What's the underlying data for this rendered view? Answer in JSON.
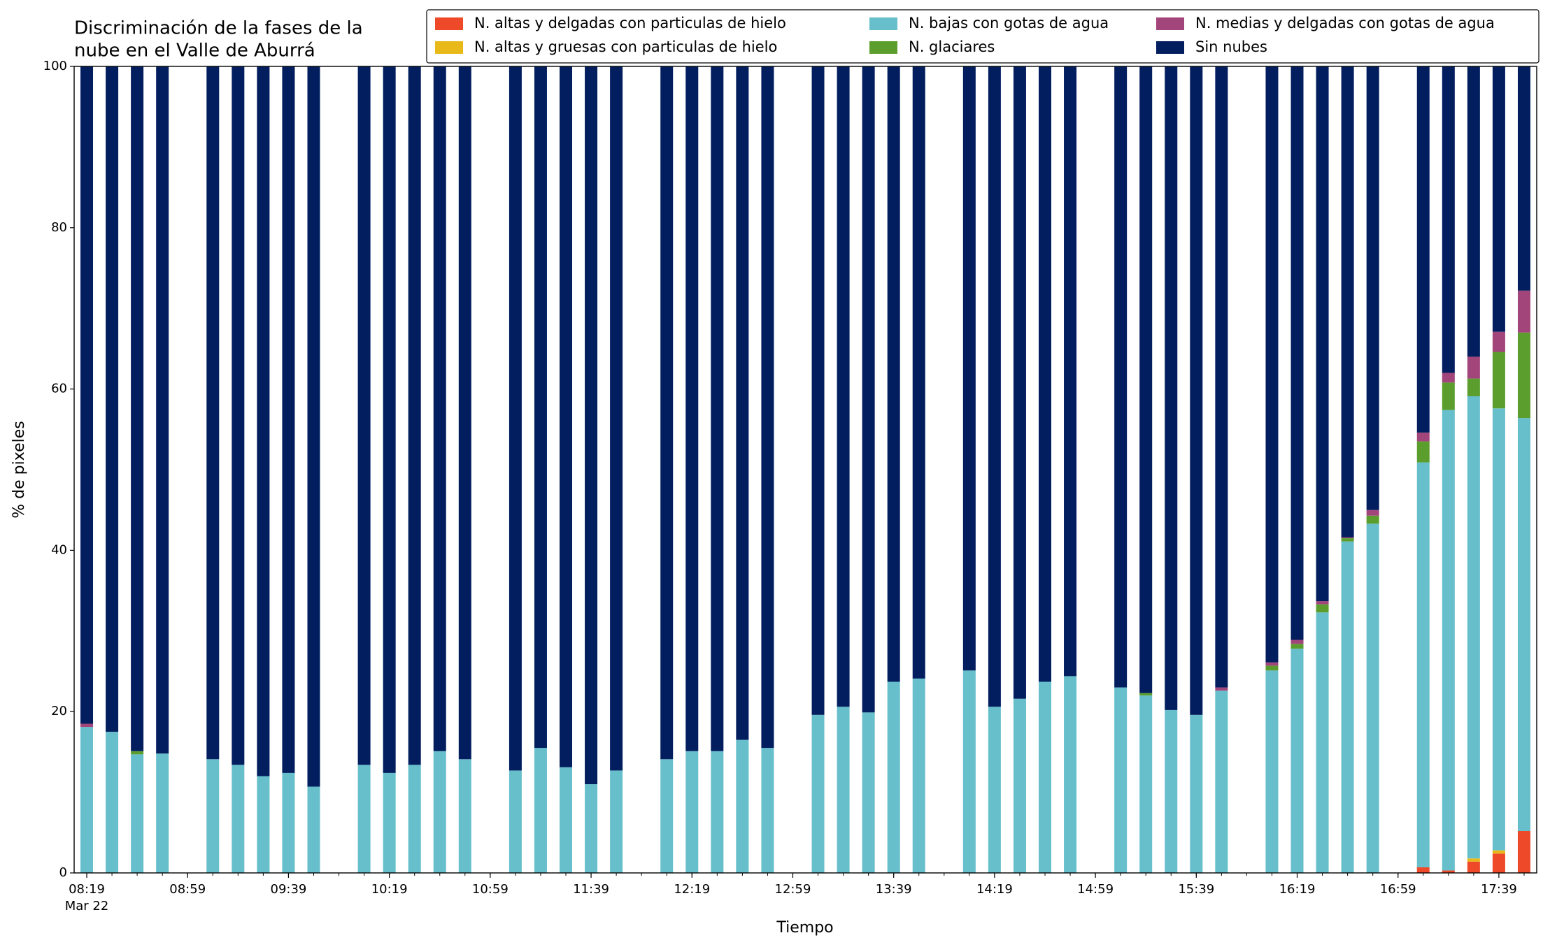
{
  "chart_data": {
    "type": "stacked_bar",
    "title": [
      "Discriminación de la fases de la",
      "nube en el Valle de Aburrá"
    ],
    "x_label": "Tiempo",
    "y_label": "% de pixeles",
    "x_date_label": "Mar 22",
    "x": [
      "08:19",
      "08:29",
      "08:39",
      "08:49",
      "09:09",
      "09:19",
      "09:29",
      "09:39",
      "09:49",
      "10:09",
      "10:19",
      "10:29",
      "10:39",
      "10:49",
      "11:09",
      "11:19",
      "11:29",
      "11:39",
      "11:49",
      "12:09",
      "12:19",
      "12:29",
      "12:39",
      "12:49",
      "13:09",
      "13:19",
      "13:29",
      "13:39",
      "13:49",
      "14:09",
      "14:19",
      "14:29",
      "14:39",
      "14:49",
      "15:09",
      "15:19",
      "15:29",
      "15:39",
      "15:49",
      "16:09",
      "16:19",
      "16:29",
      "16:39",
      "16:49",
      "17:09",
      "17:19",
      "17:29",
      "17:39",
      "17:49"
    ],
    "series": [
      {
        "name": "N. altas y delgadas con particulas de hielo",
        "color": "#ee4a2a",
        "values": [
          0,
          0,
          0,
          0,
          0,
          0,
          0,
          0,
          0,
          0,
          0,
          0,
          0,
          0,
          0,
          0,
          0,
          0,
          0,
          0,
          0,
          0,
          0,
          0,
          0,
          0,
          0,
          0,
          0,
          0,
          0,
          0,
          0,
          0,
          0,
          0,
          0,
          0,
          0,
          0,
          0,
          0,
          0,
          0,
          0.7,
          0.3,
          1.4,
          2.4,
          5.2
        ]
      },
      {
        "name": "N. altas y gruesas con particulas de hielo",
        "color": "#e8b919",
        "values": [
          0,
          0,
          0,
          0,
          0,
          0,
          0,
          0,
          0,
          0,
          0,
          0,
          0,
          0,
          0,
          0,
          0,
          0,
          0,
          0,
          0,
          0,
          0,
          0,
          0,
          0,
          0,
          0,
          0,
          0,
          0,
          0,
          0,
          0,
          0,
          0,
          0,
          0,
          0,
          0,
          0,
          0,
          0,
          0,
          0,
          0,
          0.4,
          0.4,
          0
        ]
      },
      {
        "name": "N. bajas con gotas de agua",
        "color": "#67bfcc",
        "values": [
          18.1,
          17.5,
          14.7,
          14.8,
          14.1,
          13.4,
          12.0,
          12.4,
          10.7,
          13.4,
          12.4,
          13.4,
          15.1,
          14.1,
          12.7,
          15.5,
          13.1,
          11.0,
          12.7,
          14.1,
          15.1,
          15.1,
          16.5,
          15.5,
          19.6,
          20.6,
          19.9,
          23.7,
          24.1,
          25.1,
          20.6,
          21.6,
          23.7,
          24.4,
          23.0,
          22.0,
          20.2,
          19.6,
          22.6,
          25.1,
          27.8,
          32.3,
          41.1,
          43.3,
          50.2,
          57.1,
          57.3,
          54.8,
          51.2
        ]
      },
      {
        "name": "N. glaciares",
        "color": "#5c9e2e",
        "values": [
          0,
          0,
          0.4,
          0,
          0,
          0,
          0,
          0,
          0,
          0,
          0,
          0,
          0,
          0,
          0,
          0,
          0,
          0,
          0,
          0,
          0,
          0,
          0,
          0,
          0,
          0,
          0,
          0,
          0,
          0,
          0,
          0,
          0,
          0,
          0,
          0.3,
          0,
          0,
          0,
          0.6,
          0.6,
          1.0,
          0.4,
          1.0,
          2.6,
          3.4,
          2.2,
          7.0,
          10.6
        ]
      },
      {
        "name": "N. medias y delgadas con gotas de agua",
        "color": "#a2457a",
        "values": [
          0.4,
          0,
          0,
          0,
          0,
          0,
          0,
          0,
          0,
          0,
          0,
          0,
          0,
          0,
          0,
          0,
          0,
          0,
          0,
          0,
          0,
          0,
          0,
          0,
          0,
          0,
          0,
          0,
          0,
          0,
          0,
          0,
          0,
          0,
          0,
          0,
          0,
          0,
          0.4,
          0.4,
          0.5,
          0.4,
          0.1,
          0.7,
          1.1,
          1.2,
          2.7,
          2.5,
          5.2
        ]
      },
      {
        "name": "Sin nubes",
        "color": "#021e5f",
        "values": [
          81.5,
          82.5,
          84.9,
          85.2,
          85.9,
          86.6,
          88.0,
          87.6,
          89.3,
          86.6,
          87.6,
          86.6,
          84.9,
          85.9,
          87.3,
          84.5,
          86.9,
          89.0,
          87.3,
          85.9,
          84.9,
          84.9,
          83.5,
          84.5,
          80.4,
          79.4,
          80.1,
          76.3,
          75.9,
          74.9,
          79.4,
          78.4,
          76.3,
          75.6,
          77.0,
          77.7,
          79.8,
          80.4,
          77.0,
          73.9,
          71.1,
          66.3,
          58.4,
          55.0,
          45.4,
          38.0,
          36.0,
          32.9,
          27.8
        ]
      }
    ],
    "xlim": [
      "08:14",
      "17:54"
    ],
    "xticks": [
      "08:19",
      "08:59",
      "09:39",
      "10:19",
      "10:59",
      "11:39",
      "12:19",
      "12:59",
      "13:39",
      "14:19",
      "14:59",
      "15:39",
      "16:19",
      "16:59",
      "17:39"
    ],
    "ylim": [
      0,
      100
    ],
    "yticks": [
      0,
      20,
      40,
      60,
      80,
      100
    ],
    "grid": false,
    "legend": "upper right"
  }
}
